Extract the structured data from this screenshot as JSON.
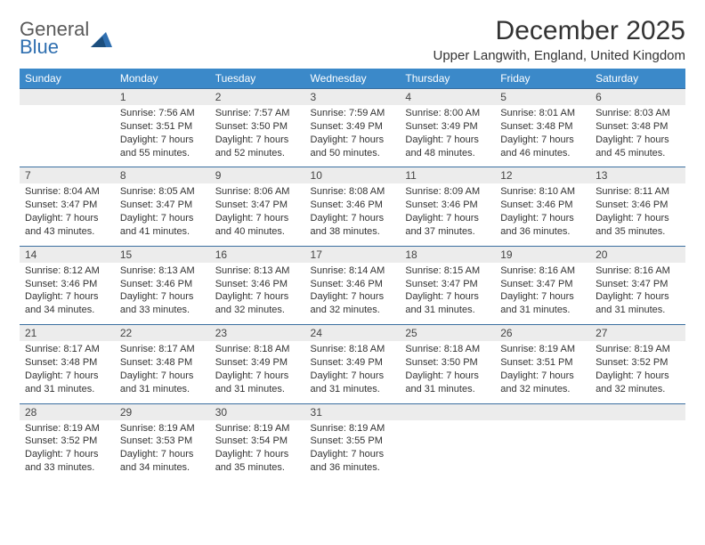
{
  "logo": {
    "word1": "General",
    "word2": "Blue"
  },
  "title": "December 2025",
  "location": "Upper Langwith, England, United Kingdom",
  "colors": {
    "header_bg": "#3b89c9",
    "header_text": "#ffffff",
    "numrow_bg": "#ececec",
    "numrow_border": "#3b6fa0",
    "body_text": "#333333",
    "logo_gray": "#5a5a5a",
    "logo_blue": "#2f6fb0"
  },
  "day_headers": [
    "Sunday",
    "Monday",
    "Tuesday",
    "Wednesday",
    "Thursday",
    "Friday",
    "Saturday"
  ],
  "weeks": [
    {
      "nums": [
        "",
        "1",
        "2",
        "3",
        "4",
        "5",
        "6"
      ],
      "cells": [
        {},
        {
          "sunrise": "Sunrise: 7:56 AM",
          "sunset": "Sunset: 3:51 PM",
          "dl1": "Daylight: 7 hours",
          "dl2": "and 55 minutes."
        },
        {
          "sunrise": "Sunrise: 7:57 AM",
          "sunset": "Sunset: 3:50 PM",
          "dl1": "Daylight: 7 hours",
          "dl2": "and 52 minutes."
        },
        {
          "sunrise": "Sunrise: 7:59 AM",
          "sunset": "Sunset: 3:49 PM",
          "dl1": "Daylight: 7 hours",
          "dl2": "and 50 minutes."
        },
        {
          "sunrise": "Sunrise: 8:00 AM",
          "sunset": "Sunset: 3:49 PM",
          "dl1": "Daylight: 7 hours",
          "dl2": "and 48 minutes."
        },
        {
          "sunrise": "Sunrise: 8:01 AM",
          "sunset": "Sunset: 3:48 PM",
          "dl1": "Daylight: 7 hours",
          "dl2": "and 46 minutes."
        },
        {
          "sunrise": "Sunrise: 8:03 AM",
          "sunset": "Sunset: 3:48 PM",
          "dl1": "Daylight: 7 hours",
          "dl2": "and 45 minutes."
        }
      ]
    },
    {
      "nums": [
        "7",
        "8",
        "9",
        "10",
        "11",
        "12",
        "13"
      ],
      "cells": [
        {
          "sunrise": "Sunrise: 8:04 AM",
          "sunset": "Sunset: 3:47 PM",
          "dl1": "Daylight: 7 hours",
          "dl2": "and 43 minutes."
        },
        {
          "sunrise": "Sunrise: 8:05 AM",
          "sunset": "Sunset: 3:47 PM",
          "dl1": "Daylight: 7 hours",
          "dl2": "and 41 minutes."
        },
        {
          "sunrise": "Sunrise: 8:06 AM",
          "sunset": "Sunset: 3:47 PM",
          "dl1": "Daylight: 7 hours",
          "dl2": "and 40 minutes."
        },
        {
          "sunrise": "Sunrise: 8:08 AM",
          "sunset": "Sunset: 3:46 PM",
          "dl1": "Daylight: 7 hours",
          "dl2": "and 38 minutes."
        },
        {
          "sunrise": "Sunrise: 8:09 AM",
          "sunset": "Sunset: 3:46 PM",
          "dl1": "Daylight: 7 hours",
          "dl2": "and 37 minutes."
        },
        {
          "sunrise": "Sunrise: 8:10 AM",
          "sunset": "Sunset: 3:46 PM",
          "dl1": "Daylight: 7 hours",
          "dl2": "and 36 minutes."
        },
        {
          "sunrise": "Sunrise: 8:11 AM",
          "sunset": "Sunset: 3:46 PM",
          "dl1": "Daylight: 7 hours",
          "dl2": "and 35 minutes."
        }
      ]
    },
    {
      "nums": [
        "14",
        "15",
        "16",
        "17",
        "18",
        "19",
        "20"
      ],
      "cells": [
        {
          "sunrise": "Sunrise: 8:12 AM",
          "sunset": "Sunset: 3:46 PM",
          "dl1": "Daylight: 7 hours",
          "dl2": "and 34 minutes."
        },
        {
          "sunrise": "Sunrise: 8:13 AM",
          "sunset": "Sunset: 3:46 PM",
          "dl1": "Daylight: 7 hours",
          "dl2": "and 33 minutes."
        },
        {
          "sunrise": "Sunrise: 8:13 AM",
          "sunset": "Sunset: 3:46 PM",
          "dl1": "Daylight: 7 hours",
          "dl2": "and 32 minutes."
        },
        {
          "sunrise": "Sunrise: 8:14 AM",
          "sunset": "Sunset: 3:46 PM",
          "dl1": "Daylight: 7 hours",
          "dl2": "and 32 minutes."
        },
        {
          "sunrise": "Sunrise: 8:15 AM",
          "sunset": "Sunset: 3:47 PM",
          "dl1": "Daylight: 7 hours",
          "dl2": "and 31 minutes."
        },
        {
          "sunrise": "Sunrise: 8:16 AM",
          "sunset": "Sunset: 3:47 PM",
          "dl1": "Daylight: 7 hours",
          "dl2": "and 31 minutes."
        },
        {
          "sunrise": "Sunrise: 8:16 AM",
          "sunset": "Sunset: 3:47 PM",
          "dl1": "Daylight: 7 hours",
          "dl2": "and 31 minutes."
        }
      ]
    },
    {
      "nums": [
        "21",
        "22",
        "23",
        "24",
        "25",
        "26",
        "27"
      ],
      "cells": [
        {
          "sunrise": "Sunrise: 8:17 AM",
          "sunset": "Sunset: 3:48 PM",
          "dl1": "Daylight: 7 hours",
          "dl2": "and 31 minutes."
        },
        {
          "sunrise": "Sunrise: 8:17 AM",
          "sunset": "Sunset: 3:48 PM",
          "dl1": "Daylight: 7 hours",
          "dl2": "and 31 minutes."
        },
        {
          "sunrise": "Sunrise: 8:18 AM",
          "sunset": "Sunset: 3:49 PM",
          "dl1": "Daylight: 7 hours",
          "dl2": "and 31 minutes."
        },
        {
          "sunrise": "Sunrise: 8:18 AM",
          "sunset": "Sunset: 3:49 PM",
          "dl1": "Daylight: 7 hours",
          "dl2": "and 31 minutes."
        },
        {
          "sunrise": "Sunrise: 8:18 AM",
          "sunset": "Sunset: 3:50 PM",
          "dl1": "Daylight: 7 hours",
          "dl2": "and 31 minutes."
        },
        {
          "sunrise": "Sunrise: 8:19 AM",
          "sunset": "Sunset: 3:51 PM",
          "dl1": "Daylight: 7 hours",
          "dl2": "and 32 minutes."
        },
        {
          "sunrise": "Sunrise: 8:19 AM",
          "sunset": "Sunset: 3:52 PM",
          "dl1": "Daylight: 7 hours",
          "dl2": "and 32 minutes."
        }
      ]
    },
    {
      "nums": [
        "28",
        "29",
        "30",
        "31",
        "",
        "",
        ""
      ],
      "cells": [
        {
          "sunrise": "Sunrise: 8:19 AM",
          "sunset": "Sunset: 3:52 PM",
          "dl1": "Daylight: 7 hours",
          "dl2": "and 33 minutes."
        },
        {
          "sunrise": "Sunrise: 8:19 AM",
          "sunset": "Sunset: 3:53 PM",
          "dl1": "Daylight: 7 hours",
          "dl2": "and 34 minutes."
        },
        {
          "sunrise": "Sunrise: 8:19 AM",
          "sunset": "Sunset: 3:54 PM",
          "dl1": "Daylight: 7 hours",
          "dl2": "and 35 minutes."
        },
        {
          "sunrise": "Sunrise: 8:19 AM",
          "sunset": "Sunset: 3:55 PM",
          "dl1": "Daylight: 7 hours",
          "dl2": "and 36 minutes."
        },
        {},
        {},
        {}
      ]
    }
  ]
}
